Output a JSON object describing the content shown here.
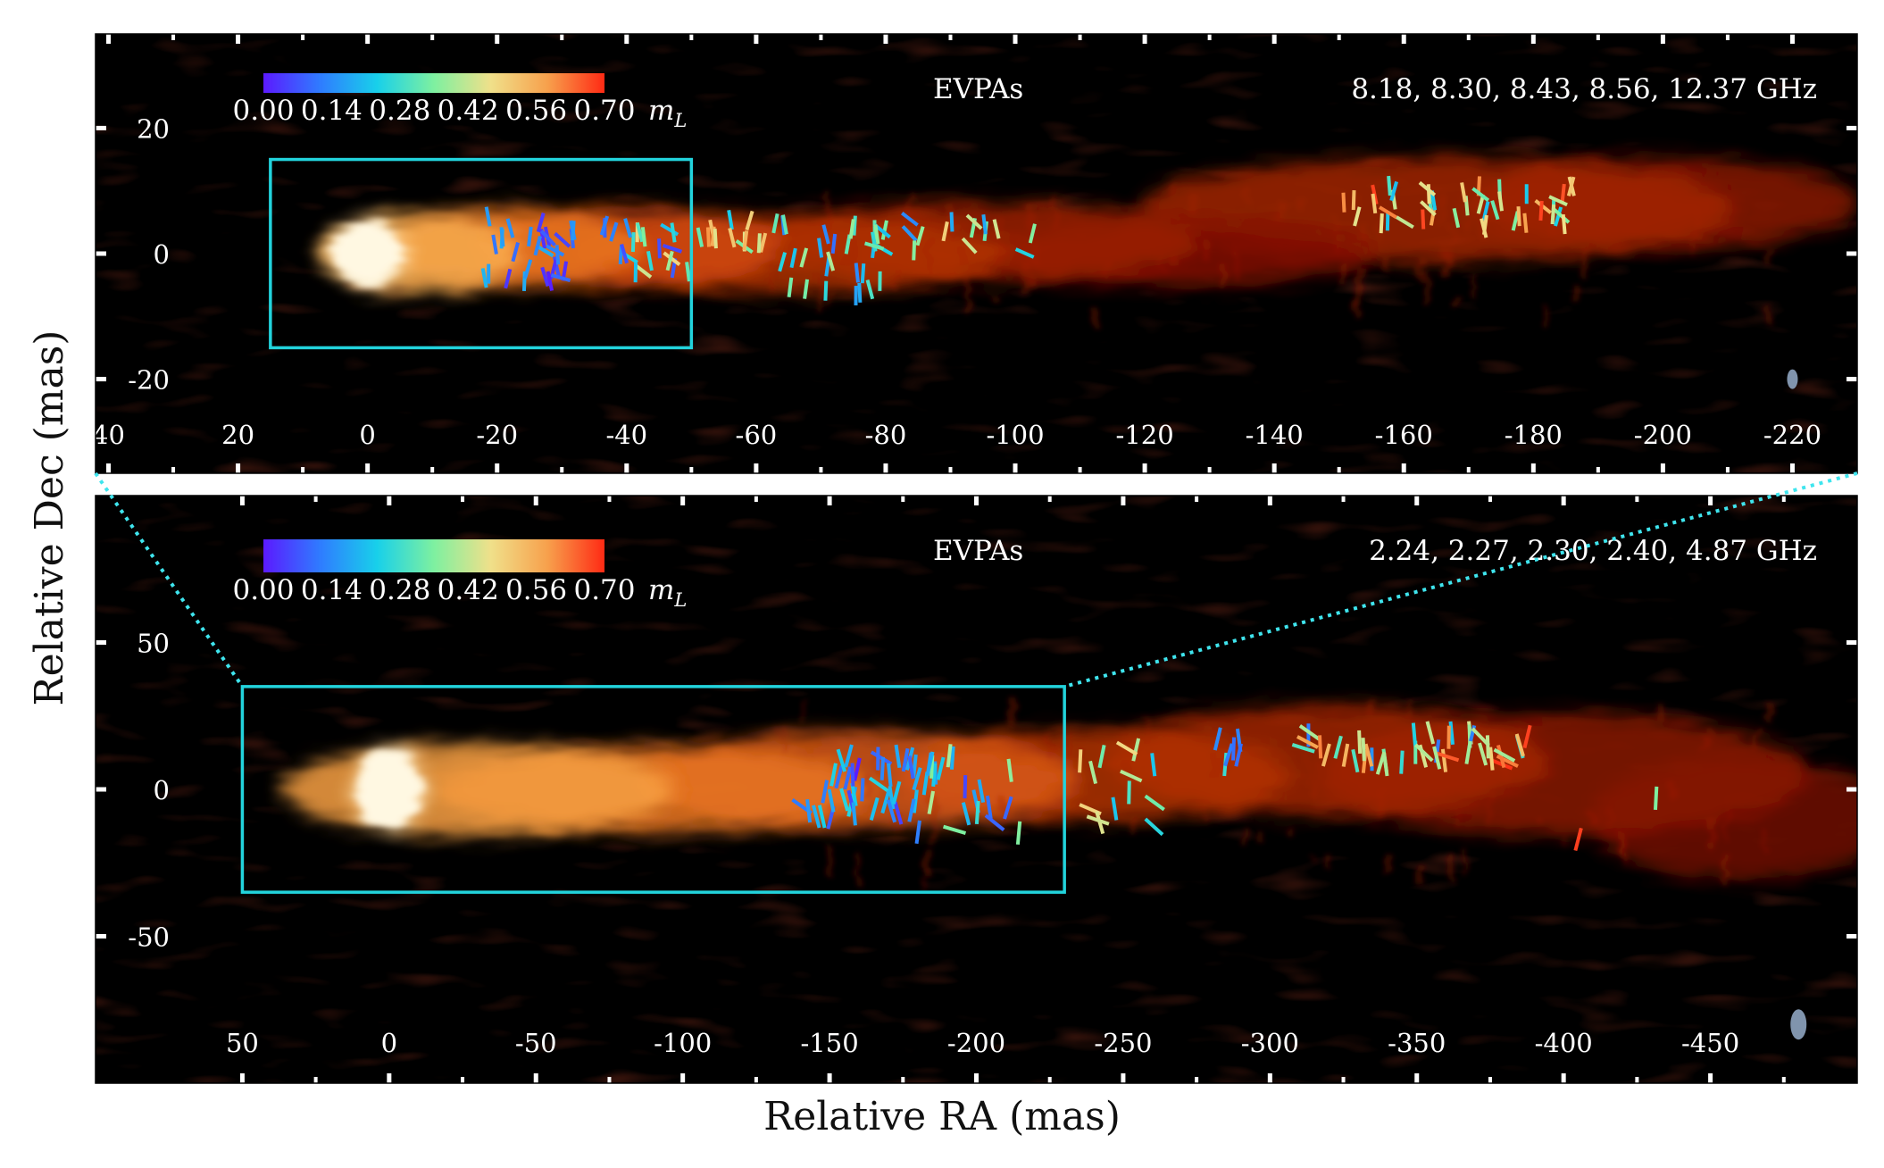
{
  "figure": {
    "xlabel": "Relative RA (mas)",
    "ylabel": "Relative Dec (mas)"
  },
  "chart_data": [
    {
      "type": "heatmap",
      "panel": "top",
      "title": "EVPAs",
      "frequencies_label": "8.18, 8.30, 8.43, 8.56, 12.37 GHz",
      "colorbar": {
        "label": "m_L",
        "range": [
          0.0,
          0.7
        ],
        "tick_labels": [
          "0.00",
          "0.14",
          "0.28",
          "0.42",
          "0.56",
          "0.70"
        ],
        "colors": [
          "#5b1aff",
          "#2f7cff",
          "#18d0ea",
          "#7ef0a0",
          "#f0e08a",
          "#f7a04c",
          "#ff2a14"
        ]
      },
      "xlim": [
        42,
        -230
      ],
      "ylim": [
        -35,
        35
      ],
      "x_ticks": [
        40,
        20,
        0,
        -20,
        -40,
        -60,
        -80,
        -100,
        -120,
        -140,
        -160,
        -180,
        -200,
        -220
      ],
      "x_tick_labels": [
        "40",
        "20",
        "0",
        "-20",
        "-40",
        "-60",
        "-80",
        "-100",
        "-120",
        "-140",
        "-160",
        "-180",
        "-200",
        "-220"
      ],
      "y_ticks": [
        20,
        0,
        -20
      ],
      "y_tick_labels": [
        "20",
        "0",
        "-20"
      ],
      "zoom_box": {
        "x": [
          15,
          -50
        ],
        "y": [
          -15,
          15
        ]
      },
      "jet": {
        "core_x": 0,
        "end_x": -220,
        "blobs": [
          {
            "x": 0,
            "y": 0,
            "rx": 3,
            "ry": 5,
            "intensity": 1.0
          },
          {
            "x": -8,
            "y": 0,
            "rx": 9,
            "ry": 6,
            "intensity": 0.8
          },
          {
            "x": -22,
            "y": 1,
            "rx": 12,
            "ry": 6,
            "intensity": 0.6
          },
          {
            "x": -40,
            "y": 1,
            "rx": 14,
            "ry": 6,
            "intensity": 0.45
          },
          {
            "x": -65,
            "y": 0,
            "rx": 20,
            "ry": 6,
            "intensity": 0.35
          },
          {
            "x": -95,
            "y": 2,
            "rx": 20,
            "ry": 6,
            "intensity": 0.28
          },
          {
            "x": -125,
            "y": 0,
            "rx": 18,
            "ry": 5,
            "intensity": 0.2
          },
          {
            "x": -165,
            "y": 7,
            "rx": 28,
            "ry": 8,
            "intensity": 0.3
          },
          {
            "x": -200,
            "y": 8,
            "rx": 18,
            "ry": 7,
            "intensity": 0.22
          }
        ]
      },
      "evpa_groups": [
        {
          "x": [
            -18,
            -32
          ],
          "y": [
            -5,
            6
          ],
          "count": 30,
          "m_range": [
            0.0,
            0.2
          ]
        },
        {
          "x": [
            -36,
            -50
          ],
          "y": [
            -4,
            5
          ],
          "count": 22,
          "m_range": [
            0.05,
            0.5
          ]
        },
        {
          "x": [
            -51,
            -63
          ],
          "y": [
            1,
            6
          ],
          "count": 14,
          "m_range": [
            0.2,
            0.6
          ]
        },
        {
          "x": [
            -64,
            -80
          ],
          "y": [
            -7,
            5
          ],
          "count": 30,
          "m_range": [
            0.1,
            0.4
          ]
        },
        {
          "x": [
            -83,
            -104
          ],
          "y": [
            0,
            6
          ],
          "count": 14,
          "m_range": [
            0.1,
            0.55
          ]
        },
        {
          "x": [
            -150,
            -187
          ],
          "y": [
            4,
            11
          ],
          "count": 46,
          "m_range": [
            0.2,
            0.7
          ]
        }
      ],
      "beam": {
        "x": -220,
        "y": -20
      }
    },
    {
      "type": "heatmap",
      "panel": "bottom",
      "title": "EVPAs",
      "frequencies_label": "2.24, 2.27, 2.30, 2.40, 4.87 GHz",
      "colorbar": {
        "label": "m_L",
        "range": [
          0.0,
          0.7
        ],
        "tick_labels": [
          "0.00",
          "0.14",
          "0.28",
          "0.42",
          "0.56",
          "0.70"
        ],
        "colors": [
          "#5b1aff",
          "#2f7cff",
          "#18d0ea",
          "#7ef0a0",
          "#f0e08a",
          "#f7a04c",
          "#ff2a14"
        ]
      },
      "xlim": [
        100,
        -500
      ],
      "ylim": [
        -100,
        100
      ],
      "x_ticks": [
        50,
        0,
        -50,
        -100,
        -150,
        -200,
        -250,
        -300,
        -350,
        -400,
        -450
      ],
      "x_tick_labels": [
        "50",
        "0",
        "-50",
        "-100",
        "-150",
        "-200",
        "-250",
        "-300",
        "-350",
        "-400",
        "-450"
      ],
      "y_ticks": [
        50,
        0,
        -50
      ],
      "y_tick_labels": [
        "50",
        "0",
        "-50"
      ],
      "zoom_box": {
        "x": [
          50,
          -230
        ],
        "y": [
          -35,
          35
        ]
      },
      "jet": {
        "core_x": 0,
        "end_x": -480,
        "blobs": [
          {
            "x": 0,
            "y": 0,
            "rx": 6,
            "ry": 14,
            "intensity": 1.0
          },
          {
            "x": -30,
            "y": 0,
            "rx": 40,
            "ry": 15,
            "intensity": 0.75
          },
          {
            "x": -90,
            "y": 0,
            "rx": 45,
            "ry": 14,
            "intensity": 0.6
          },
          {
            "x": -160,
            "y": 3,
            "rx": 45,
            "ry": 16,
            "intensity": 0.5
          },
          {
            "x": -240,
            "y": 5,
            "rx": 40,
            "ry": 15,
            "intensity": 0.35
          },
          {
            "x": -320,
            "y": 10,
            "rx": 45,
            "ry": 18,
            "intensity": 0.3
          },
          {
            "x": -400,
            "y": 5,
            "rx": 50,
            "ry": 20,
            "intensity": 0.22
          },
          {
            "x": -460,
            "y": -10,
            "rx": 30,
            "ry": 20,
            "intensity": 0.15
          }
        ]
      },
      "evpa_groups": [
        {
          "x": [
            -140,
            -180
          ],
          "y": [
            -10,
            14
          ],
          "count": 40,
          "m_range": [
            0.0,
            0.25
          ]
        },
        {
          "x": [
            -180,
            -215
          ],
          "y": [
            -15,
            12
          ],
          "count": 22,
          "m_range": [
            0.05,
            0.45
          ]
        },
        {
          "x": [
            -235,
            -262
          ],
          "y": [
            -15,
            15
          ],
          "count": 14,
          "m_range": [
            0.2,
            0.5
          ]
        },
        {
          "x": [
            -275,
            -290
          ],
          "y": [
            8,
            19
          ],
          "count": 6,
          "m_range": [
            0.1,
            0.3
          ]
        },
        {
          "x": [
            -310,
            -390
          ],
          "y": [
            8,
            20
          ],
          "count": 44,
          "m_range": [
            0.1,
            0.7
          ]
        },
        {
          "x": [
            -430,
            -432
          ],
          "y": [
            -3,
            -3
          ],
          "count": 1,
          "m_range": [
            0.35,
            0.35
          ]
        },
        {
          "x": [
            -405,
            -405
          ],
          "y": [
            -17,
            -17
          ],
          "count": 1,
          "m_range": [
            0.68,
            0.68
          ]
        }
      ],
      "beam": {
        "x": -480,
        "y": -80
      }
    }
  ]
}
